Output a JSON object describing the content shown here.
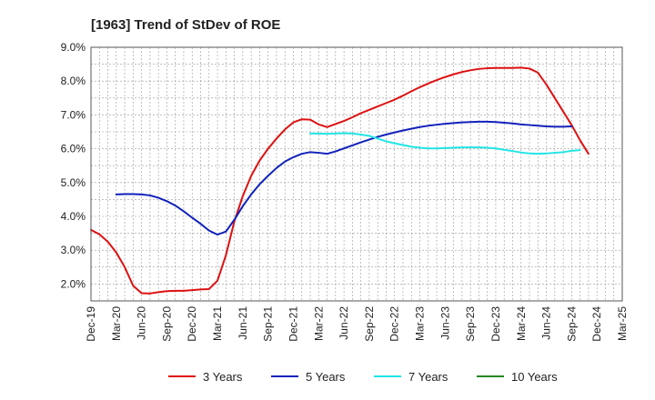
{
  "chart_data": {
    "type": "line",
    "title": "[1963]  Trend of StDev of ROE",
    "xlabel": "",
    "ylabel": "",
    "ylim": [
      1.5,
      9.0
    ],
    "grid": true,
    "legend_position": "bottom",
    "x_ticks": [
      "Dec-19",
      "Mar-20",
      "Jun-20",
      "Sep-20",
      "Dec-20",
      "Mar-21",
      "Jun-21",
      "Sep-21",
      "Dec-21",
      "Mar-22",
      "Jun-22",
      "Sep-22",
      "Dec-22",
      "Mar-23",
      "Jun-23",
      "Sep-23",
      "Dec-23",
      "Mar-24",
      "Jun-24",
      "Sep-24",
      "Dec-24",
      "Mar-25"
    ],
    "y_ticks": [
      "2.0%",
      "3.0%",
      "4.0%",
      "5.0%",
      "6.0%",
      "7.0%",
      "8.0%",
      "9.0%"
    ],
    "y_tick_values": [
      2,
      3,
      4,
      5,
      6,
      7,
      8,
      9
    ],
    "series": [
      {
        "name": "3 Years",
        "color": "#dd1111",
        "points": [
          [
            0,
            3.6
          ],
          [
            1,
            3.47
          ],
          [
            2,
            3.25
          ],
          [
            3,
            2.93
          ],
          [
            4,
            2.5
          ],
          [
            5,
            1.95
          ],
          [
            6,
            1.73
          ],
          [
            7,
            1.72
          ],
          [
            8,
            1.76
          ],
          [
            9,
            1.79
          ],
          [
            10,
            1.8
          ],
          [
            11,
            1.8
          ],
          [
            12,
            1.82
          ],
          [
            13,
            1.84
          ],
          [
            14,
            1.85
          ],
          [
            15,
            2.1
          ],
          [
            16,
            2.85
          ],
          [
            17,
            3.85
          ],
          [
            18,
            4.6
          ],
          [
            19,
            5.2
          ],
          [
            20,
            5.65
          ],
          [
            21,
            6.0
          ],
          [
            22,
            6.3
          ],
          [
            23,
            6.57
          ],
          [
            24,
            6.78
          ],
          [
            25,
            6.87
          ],
          [
            26,
            6.86
          ],
          [
            27,
            6.72
          ],
          [
            28,
            6.64
          ],
          [
            29,
            6.73
          ],
          [
            30,
            6.82
          ],
          [
            31,
            6.93
          ],
          [
            32,
            7.05
          ],
          [
            33,
            7.15
          ],
          [
            34,
            7.25
          ],
          [
            35,
            7.35
          ],
          [
            36,
            7.45
          ],
          [
            37,
            7.57
          ],
          [
            38,
            7.7
          ],
          [
            39,
            7.82
          ],
          [
            40,
            7.93
          ],
          [
            41,
            8.03
          ],
          [
            42,
            8.12
          ],
          [
            43,
            8.2
          ],
          [
            44,
            8.27
          ],
          [
            45,
            8.32
          ],
          [
            46,
            8.36
          ],
          [
            47,
            8.38
          ],
          [
            48,
            8.39
          ],
          [
            49,
            8.39
          ],
          [
            50,
            8.39
          ],
          [
            51,
            8.4
          ],
          [
            52,
            8.37
          ],
          [
            53,
            8.25
          ],
          [
            54,
            7.9
          ],
          [
            55,
            7.5
          ],
          [
            56,
            7.1
          ],
          [
            57,
            6.7
          ],
          [
            58,
            6.25
          ],
          [
            59,
            5.85
          ]
        ]
      },
      {
        "name": "5 Years",
        "color": "#1122bb",
        "points": [
          [
            3,
            4.65
          ],
          [
            4,
            4.66
          ],
          [
            5,
            4.66
          ],
          [
            6,
            4.65
          ],
          [
            7,
            4.62
          ],
          [
            8,
            4.55
          ],
          [
            9,
            4.45
          ],
          [
            10,
            4.32
          ],
          [
            11,
            4.15
          ],
          [
            12,
            3.96
          ],
          [
            13,
            3.78
          ],
          [
            14,
            3.58
          ],
          [
            15,
            3.46
          ],
          [
            16,
            3.55
          ],
          [
            17,
            3.9
          ],
          [
            18,
            4.3
          ],
          [
            19,
            4.65
          ],
          [
            20,
            4.95
          ],
          [
            21,
            5.2
          ],
          [
            22,
            5.43
          ],
          [
            23,
            5.62
          ],
          [
            24,
            5.75
          ],
          [
            25,
            5.85
          ],
          [
            26,
            5.9
          ],
          [
            27,
            5.88
          ],
          [
            28,
            5.85
          ],
          [
            29,
            5.92
          ],
          [
            30,
            6.01
          ],
          [
            31,
            6.1
          ],
          [
            32,
            6.19
          ],
          [
            33,
            6.27
          ],
          [
            34,
            6.35
          ],
          [
            35,
            6.42
          ],
          [
            36,
            6.48
          ],
          [
            37,
            6.54
          ],
          [
            38,
            6.59
          ],
          [
            39,
            6.64
          ],
          [
            40,
            6.68
          ],
          [
            41,
            6.71
          ],
          [
            42,
            6.74
          ],
          [
            43,
            6.76
          ],
          [
            44,
            6.78
          ],
          [
            45,
            6.79
          ],
          [
            46,
            6.8
          ],
          [
            47,
            6.8
          ],
          [
            48,
            6.79
          ],
          [
            49,
            6.77
          ],
          [
            50,
            6.75
          ],
          [
            51,
            6.72
          ],
          [
            52,
            6.7
          ],
          [
            53,
            6.68
          ],
          [
            54,
            6.66
          ],
          [
            55,
            6.65
          ],
          [
            56,
            6.65
          ],
          [
            57,
            6.66
          ]
        ]
      },
      {
        "name": "7 Years",
        "color": "#22e5e5",
        "points": [
          [
            26,
            6.45
          ],
          [
            27,
            6.45
          ],
          [
            28,
            6.44
          ],
          [
            29,
            6.45
          ],
          [
            30,
            6.46
          ],
          [
            31,
            6.45
          ],
          [
            32,
            6.42
          ],
          [
            33,
            6.38
          ],
          [
            34,
            6.3
          ],
          [
            35,
            6.22
          ],
          [
            36,
            6.16
          ],
          [
            37,
            6.11
          ],
          [
            38,
            6.06
          ],
          [
            39,
            6.03
          ],
          [
            40,
            6.01
          ],
          [
            41,
            6.01
          ],
          [
            42,
            6.02
          ],
          [
            43,
            6.03
          ],
          [
            44,
            6.04
          ],
          [
            45,
            6.04
          ],
          [
            46,
            6.04
          ],
          [
            47,
            6.03
          ],
          [
            48,
            6.01
          ],
          [
            49,
            5.97
          ],
          [
            50,
            5.93
          ],
          [
            51,
            5.89
          ],
          [
            52,
            5.86
          ],
          [
            53,
            5.85
          ],
          [
            54,
            5.86
          ],
          [
            55,
            5.88
          ],
          [
            56,
            5.9
          ],
          [
            57,
            5.94
          ],
          [
            58,
            5.96
          ]
        ]
      },
      {
        "name": "10 Years",
        "color": "#228822",
        "points": []
      }
    ]
  }
}
